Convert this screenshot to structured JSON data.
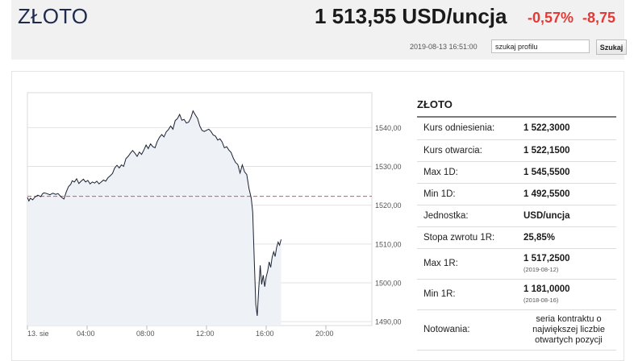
{
  "instrument": {
    "title": "ZŁOTO",
    "price": "1 513,55 USD/uncja",
    "change_pct": "-0,57%",
    "change_abs": "-8,75"
  },
  "toolbar": {
    "timestamp": "2019-08-13 16:51:00",
    "search_value": "szukaj profilu",
    "search_button": "Szukaj"
  },
  "colors": {
    "title": "#1f2a4d",
    "negative": "#e23a36",
    "line": "#1a2233",
    "reference": "#e05050"
  },
  "chart_data": {
    "type": "line",
    "title": "",
    "xlabel": "",
    "ylabel": "",
    "x_ticks": [
      "13. sie",
      "04:00",
      "08:00",
      "12:00",
      "16:00",
      "20:00"
    ],
    "y_ticks": [
      "1540,00",
      "1530,00",
      "1520,00",
      "1510,00",
      "1500,00",
      "1490,00"
    ],
    "ylim": [
      1489,
      1549
    ],
    "reference_value": 1522.3,
    "grid": true,
    "series": [
      {
        "x": [
          0.0,
          0.1,
          0.2,
          0.35,
          0.5,
          0.7,
          0.9,
          1.0,
          1.1,
          1.3,
          1.5,
          1.7,
          1.9,
          2.05,
          2.15,
          2.3,
          2.45,
          2.6,
          2.75,
          2.9,
          3.0,
          3.15,
          3.3,
          3.45,
          3.6,
          3.75,
          3.9,
          4.05,
          4.2,
          4.35,
          4.5,
          4.65,
          4.8,
          4.95,
          5.1,
          5.25,
          5.4,
          5.55,
          5.7,
          5.85,
          6.0,
          6.15,
          6.3,
          6.45,
          6.6,
          6.75,
          6.9,
          7.05,
          7.2,
          7.35,
          7.5,
          7.65,
          7.8,
          7.95,
          8.1,
          8.25,
          8.4,
          8.55,
          8.7,
          8.85,
          9.0,
          9.15,
          9.3,
          9.45,
          9.6,
          9.75,
          9.9,
          10.05,
          10.2,
          10.35,
          10.5,
          10.65,
          10.8,
          10.95,
          11.1,
          11.25,
          11.4,
          11.55,
          11.7,
          11.85,
          12.0,
          12.15,
          12.3,
          12.45,
          12.6,
          12.75,
          12.9,
          13.05,
          13.2,
          13.35,
          13.5,
          13.65,
          13.8,
          13.95,
          14.1,
          14.25,
          14.4,
          14.55,
          14.7,
          14.85,
          15.0,
          15.1,
          15.2,
          15.3,
          15.4,
          15.5,
          15.6,
          15.7,
          15.8,
          15.9,
          16.0,
          16.1,
          16.2,
          16.3,
          16.4,
          16.5,
          16.6,
          16.7,
          16.8,
          16.9,
          17.0
        ],
        "values": [
          1522.0,
          1521.1,
          1521.8,
          1521.4,
          1522.1,
          1522.6,
          1522.2,
          1522.9,
          1523.2,
          1523.0,
          1522.7,
          1523.1,
          1522.8,
          1523.0,
          1522.6,
          1522.0,
          1521.6,
          1523.4,
          1524.8,
          1525.4,
          1526.3,
          1526.0,
          1526.8,
          1525.6,
          1526.2,
          1526.7,
          1526.0,
          1526.4,
          1525.5,
          1526.0,
          1525.7,
          1526.2,
          1525.5,
          1526.0,
          1526.5,
          1526.2,
          1527.1,
          1527.6,
          1528.2,
          1529.6,
          1530.3,
          1529.6,
          1530.4,
          1530.0,
          1532.0,
          1532.6,
          1533.4,
          1534.1,
          1533.4,
          1532.6,
          1533.7,
          1533.1,
          1534.2,
          1535.5,
          1534.6,
          1535.8,
          1535.1,
          1534.8,
          1536.4,
          1537.5,
          1538.2,
          1537.6,
          1538.9,
          1539.5,
          1540.4,
          1539.6,
          1541.8,
          1542.3,
          1543.4,
          1541.9,
          1542.1,
          1541.2,
          1541.4,
          1542.5,
          1544.3,
          1543.3,
          1542.4,
          1540.4,
          1539.3,
          1539.0,
          1539.3,
          1539.6,
          1539.0,
          1538.1,
          1537.8,
          1536.8,
          1537.1,
          1536.3,
          1534.8,
          1535.1,
          1534.2,
          1533.6,
          1532.1,
          1531.0,
          1530.5,
          1528.3,
          1530.4,
          1528.6,
          1527.9,
          1524.3,
          1521.8,
          1518.2,
          1506.0,
          1494.5,
          1491.5,
          1498.6,
          1504.5,
          1499.6,
          1502.0,
          1499.0,
          1501.5,
          1503.1,
          1505.4,
          1504.0,
          1506.6,
          1508.0,
          1506.8,
          1509.1,
          1510.5,
          1509.7,
          1511.2
        ]
      }
    ]
  },
  "info": {
    "title": "ZŁOTO",
    "rows": [
      {
        "label": "Kurs odniesienia:",
        "value": "1 522,3000"
      },
      {
        "label": "Kurs otwarcia:",
        "value": "1 522,1500"
      },
      {
        "label": "Max 1D:",
        "value": "1 545,5500"
      },
      {
        "label": "Min 1D:",
        "value": "1 492,5500"
      },
      {
        "label": "Jednostka:",
        "value": "USD/uncja"
      },
      {
        "label": "Stopa zwrotu 1R:",
        "value": "25,85%"
      },
      {
        "label": "Max 1R:",
        "value": "1 517,2500",
        "sub": "(2019-08-12)"
      },
      {
        "label": "Min 1R:",
        "value": "1 181,0000",
        "sub": "(2018-08-16)"
      },
      {
        "label": "Notowania:",
        "value": "seria kontraktu o największej liczbie otwartych pozycji"
      }
    ]
  }
}
